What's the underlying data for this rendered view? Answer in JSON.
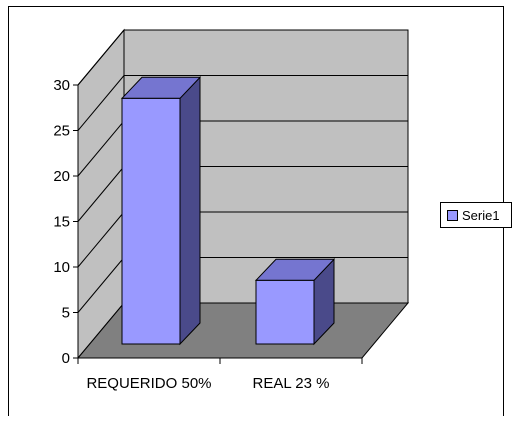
{
  "colors": {
    "wall": "#c0c0c0",
    "floor": "#808080",
    "bar_front": "#9999ff",
    "bar_top": "#7575d0",
    "bar_side": "#4a4a8a",
    "outline": "#000000"
  },
  "chart_data": {
    "type": "bar",
    "variant": "3d-column",
    "title": "",
    "xlabel": "",
    "ylabel": "",
    "categories": [
      "REQUERIDO 50%",
      "REAL  23 %"
    ],
    "series": [
      {
        "name": "Serie1",
        "values": [
          27,
          7
        ]
      }
    ],
    "ylim": [
      0,
      30
    ],
    "yticks": [
      "0",
      "5",
      "10",
      "15",
      "20",
      "25",
      "30"
    ],
    "grid": true,
    "legend": "right"
  }
}
